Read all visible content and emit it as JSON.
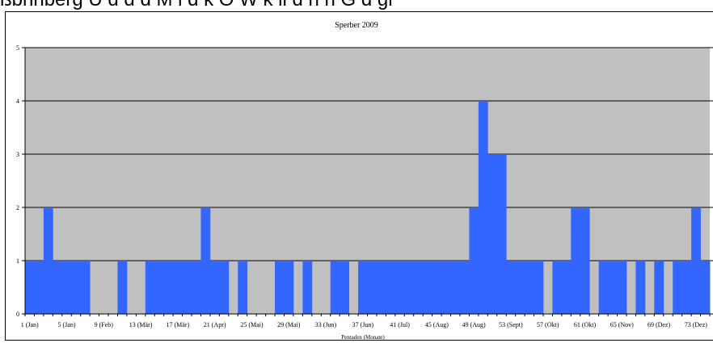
{
  "header_fragment": "ßbhnberg       Ü   d  d   d   M   l     d   k  O   W   k  ll   d   h   h  G     d   gi",
  "chart_data": {
    "type": "bar",
    "title": "Sperber 2009",
    "xlabel": "Pentaden (Monate)",
    "ylabel": "",
    "ylim": [
      0,
      5
    ],
    "yticks": [
      "0",
      "1",
      "2",
      "3",
      "4",
      "5"
    ],
    "grid": true,
    "x_tick_labels": [
      "1 (Jan)",
      "5 (Jan)",
      "9 (Feb)",
      "13 (Mär)",
      "17 (Mär)",
      "21 (Apr)",
      "25 (Mai)",
      "29 (Mai)",
      "33 (Jun)",
      "37 (Jun)",
      "41 (Jul)",
      "45 (Aug)",
      "49 (Aug)",
      "53 (Sept)",
      "57 (Okt)",
      "61 (Okt)",
      "65 (Nov)",
      "69 (Dez)",
      "73 (Dez)"
    ],
    "categories": [
      "1",
      "2",
      "3",
      "4",
      "5",
      "6",
      "7",
      "8",
      "9",
      "10",
      "11",
      "12",
      "13",
      "14",
      "15",
      "16",
      "17",
      "18",
      "19",
      "20",
      "21",
      "22",
      "23",
      "24",
      "25",
      "26",
      "27",
      "28",
      "29",
      "30",
      "31",
      "32",
      "33",
      "34",
      "35",
      "36",
      "37",
      "38",
      "39",
      "40",
      "41",
      "42",
      "43",
      "44",
      "45",
      "46",
      "47",
      "48",
      "49",
      "50",
      "51",
      "52",
      "53",
      "54",
      "55",
      "56",
      "57",
      "58",
      "59",
      "60",
      "61",
      "62",
      "63",
      "64",
      "65",
      "66",
      "67",
      "68",
      "69",
      "70",
      "71",
      "72",
      "73",
      "74"
    ],
    "values": [
      1,
      1,
      2,
      1,
      1,
      1,
      1,
      0,
      0,
      0,
      1,
      0,
      0,
      1,
      1,
      1,
      1,
      1,
      1,
      2,
      1,
      1,
      0,
      1,
      0,
      0,
      0,
      1,
      1,
      0,
      1,
      0,
      0,
      1,
      1,
      0,
      1,
      1,
      1,
      1,
      1,
      1,
      1,
      1,
      1,
      1,
      1,
      1,
      2,
      4,
      3,
      3,
      1,
      1,
      1,
      1,
      0,
      1,
      1,
      2,
      2,
      0,
      1,
      1,
      1,
      0,
      1,
      0,
      1,
      0,
      1,
      1,
      2,
      1
    ],
    "bar_color": "#3366ff",
    "plot_background": "#c0c0c0"
  }
}
